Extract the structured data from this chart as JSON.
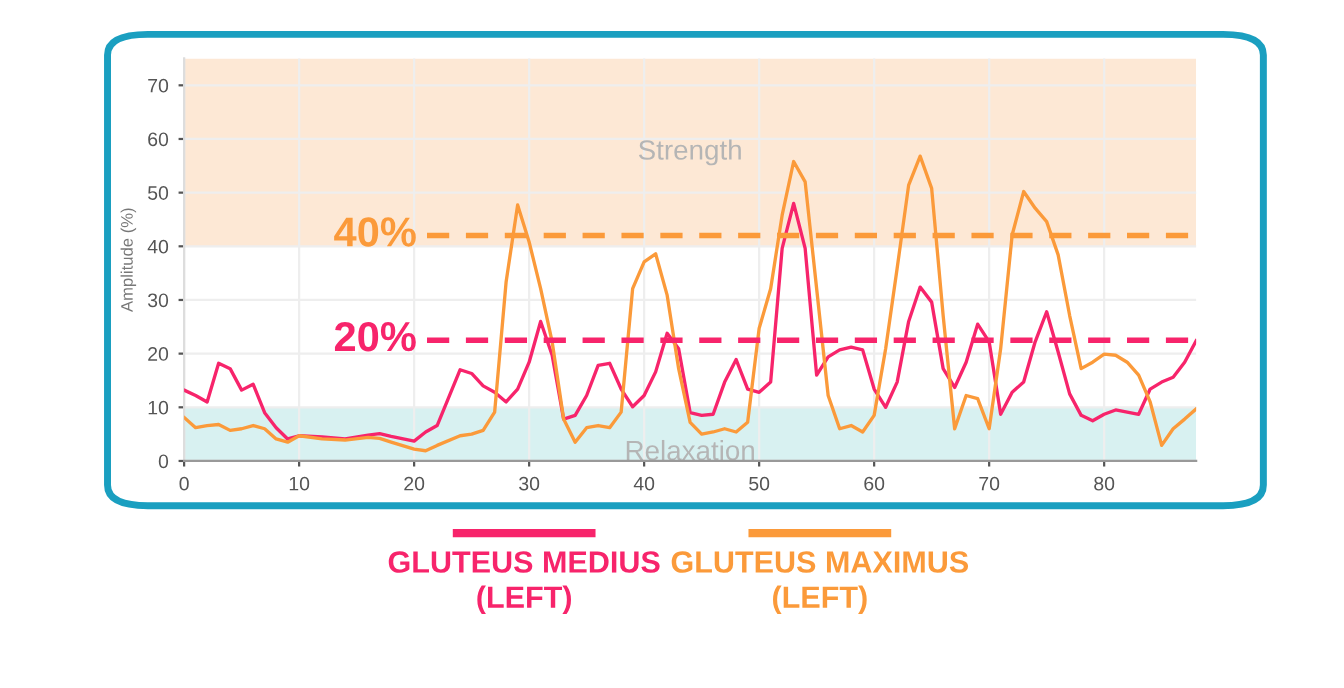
{
  "chart_data": {
    "type": "line",
    "ylabel": "Amplitude (%)",
    "x": [
      0,
      1,
      2,
      3,
      4,
      5,
      6,
      7,
      8,
      9,
      10,
      12,
      14,
      16,
      17,
      18,
      20,
      21,
      22,
      24,
      25,
      26,
      27,
      28,
      29,
      30,
      31,
      32,
      33,
      34,
      35,
      36,
      37,
      38,
      39,
      40,
      41,
      42,
      43,
      44,
      45,
      46,
      47,
      48,
      49,
      50,
      51,
      52,
      53,
      54,
      55,
      56,
      57,
      58,
      59,
      60,
      61,
      62,
      63,
      64,
      65,
      66,
      67,
      68,
      69,
      70,
      71,
      72,
      73,
      74,
      75,
      76,
      77,
      78,
      79,
      80,
      81,
      82,
      83,
      84,
      85,
      86,
      87,
      88
    ],
    "series": [
      {
        "name": "GLUTEUS MEDIUS\n(LEFT)",
        "color": "#f7246b",
        "values": [
          13.2,
          12.2,
          11,
          18.2,
          17.2,
          13.2,
          14.3,
          9,
          6.2,
          4.1,
          4.7,
          4.5,
          4.1,
          4.8,
          5.1,
          4.6,
          3.7,
          5.4,
          6.6,
          17,
          16.3,
          14,
          12.8,
          11,
          13.4,
          18.4,
          26,
          19.7,
          7.8,
          8.5,
          12.2,
          17.8,
          18.2,
          13.4,
          10.1,
          12.2,
          16.6,
          23.8,
          20.9,
          9,
          8.5,
          8.7,
          14.7,
          18.9,
          13.4,
          12.8,
          14.7,
          39.6,
          48,
          39.6,
          16,
          19.4,
          20.7,
          21.2,
          20.7,
          13.4,
          10,
          14.7,
          26,
          32.4,
          29.6,
          17.2,
          13.7,
          18.4,
          25.5,
          22.2,
          8.7,
          12.8,
          14.7,
          22.2,
          27.8,
          20.3,
          12.5,
          8.5,
          7.5,
          8.7,
          9.5,
          9.1,
          8.7,
          13.4,
          14.7,
          15.6,
          18.4,
          22.4
        ]
      },
      {
        "name": "GLUTEUS MAXIMUS\n(LEFT)",
        "color": "#fb9a3a",
        "values": [
          8.1,
          6.2,
          6.6,
          6.8,
          5.7,
          6,
          6.6,
          6,
          4.1,
          3.5,
          4.7,
          4.1,
          3.9,
          4.4,
          4.2,
          3.5,
          2.2,
          1.9,
          2.9,
          4.7,
          5,
          5.7,
          9.1,
          33.4,
          47.7,
          40.8,
          32.1,
          22.2,
          7.8,
          3.5,
          6.2,
          6.6,
          6.2,
          9.1,
          32.1,
          37.1,
          38.6,
          30.9,
          17.2,
          7.2,
          5,
          5.4,
          6,
          5.4,
          7.2,
          24.7,
          32.1,
          45.8,
          55.8,
          52,
          32.1,
          12.2,
          6,
          6.6,
          5.4,
          8.5,
          20.9,
          35.9,
          51.4,
          56.8,
          50.8,
          27.1,
          6,
          12.2,
          11.6,
          6,
          20.9,
          42.1,
          50.2,
          47.1,
          44.6,
          38.4,
          27.1,
          17.2,
          18.4,
          19.9,
          19.7,
          18.4,
          16,
          11,
          2.9,
          6,
          7.8,
          9.7
        ]
      }
    ],
    "xlim": [
      0,
      88
    ],
    "ylim": [
      0,
      75
    ],
    "xticks": [
      0,
      10,
      20,
      30,
      40,
      50,
      60,
      70,
      80
    ],
    "yticks": [
      0,
      10,
      20,
      30,
      40,
      50,
      60,
      70
    ],
    "bands": [
      {
        "axis": "y",
        "from": 40,
        "to": 75,
        "label": "Strength",
        "color": "#fde8d5"
      },
      {
        "axis": "y",
        "from": 0,
        "to": 10,
        "label": "Relaxation",
        "color": "#d8f1f1"
      }
    ],
    "ref_lines": [
      {
        "axis": "y",
        "value": 42,
        "color": "#fb9a3a",
        "line_style": "dashed"
      },
      {
        "axis": "y",
        "value": 22.5,
        "color": "#f7246b",
        "line_style": "dashed"
      }
    ],
    "annotations": [
      "40%",
      "20%"
    ],
    "grid": true,
    "legend": "bottom",
    "marker": "none",
    "line_style": "solid"
  }
}
